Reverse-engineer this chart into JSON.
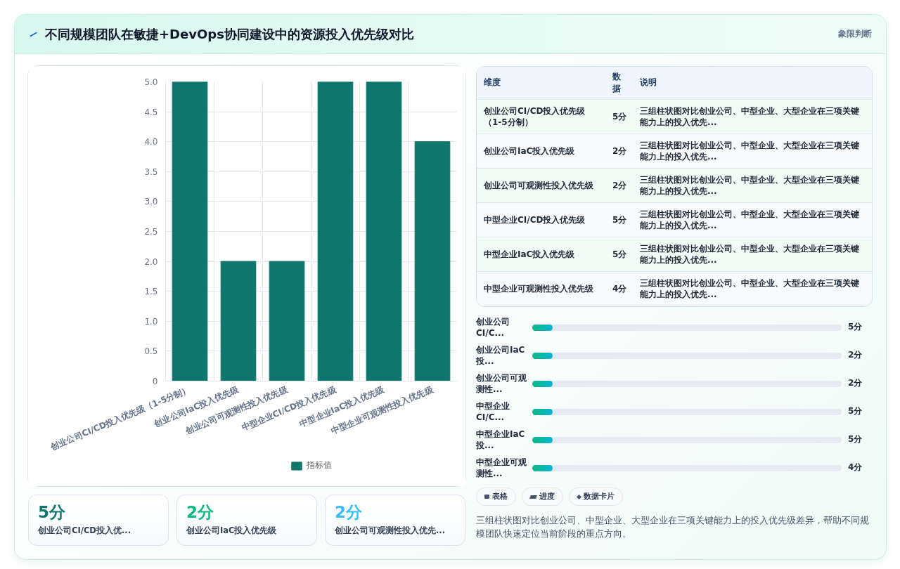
{
  "chart_data": [
    {
      "type": "bar",
      "title": "不同规模团队在敏捷+DevOps协同建设中的资源投入优先级对比",
      "annotations": [
        "象限判断"
      ],
      "categories": [
        "创业公司CI/CD投入优先级（1-5分制）",
        "创业公司IaC投入优先级",
        "创业公司可观测性投入优先级",
        "中型企业CI/CD投入优先级",
        "中型企业IaC投入优先级",
        "中型企业可观测性投入优先级"
      ],
      "series": [
        {
          "name": "指标值",
          "color": "#0f766e",
          "values": [
            5,
            2,
            2,
            5,
            5,
            4
          ]
        }
      ],
      "ylim": [
        0,
        5
      ],
      "yticks": [
        0,
        0.5,
        {
          "value": 1,
          "label": "1.0"
        },
        1.5,
        {
          "value": 2,
          "label": "2.0"
        },
        2.5,
        {
          "value": 3,
          "label": "3.0"
        },
        3.5,
        {
          "value": 4,
          "label": "4.0"
        },
        4.5,
        {
          "value": 5,
          "label": "5.0"
        }
      ],
      "grid": true,
      "legend": "bottom"
    },
    {
      "type": "other",
      "annotations": [
        "维度",
        "数据",
        "说明",
        "创业公司CI/CD投入优先级（1-5分制）",
        "5分",
        "三组柱状图对比创业公司、中型企业、大型企业在三项关键能力上的投入优先...",
        "创业公司IaC投入优先级",
        "2分",
        "三组柱状图对比创业公司、中型企业、大型企业在三项关键能力上的投入优先...",
        "创业公司可观测性投入优先级",
        "2分",
        "三组柱状图对比创业公司、中型企业、大型企业在三项关键能力上的投入优先...",
        "中型企业CI/CD投入优先级",
        "5分",
        "三组柱状图对比创业公司、中型企业、大型企业在三项关键能力上的投入优先...",
        "中型企业IaC投入优先级",
        "5分",
        "三组柱状图对比创业公司、中型企业、大型企业在三项关键能力上的投入优先...",
        "中型企业可观测性投入优先级",
        "4分",
        "三组柱状图对比创业公司、中型企业、大型企业在三项关键能力上的投入优先..."
      ]
    },
    {
      "type": "other",
      "annotations": [
        "创业公司CI/C...",
        "5分",
        "创业公司IaC投...",
        "2分",
        "创业公司可观测性...",
        "2分",
        "中型企业CI/C...",
        "5分",
        "中型企业IaC投...",
        "5分",
        "中型企业可观测性...",
        "4分"
      ]
    },
    {
      "type": "other",
      "colors": [
        "#0f766e",
        "#10b981",
        "#38bdf8"
      ],
      "annotations": [
        "5分",
        "创业公司CI/CD投入优...",
        "2分",
        "创业公司IaC投入优先级",
        "2分",
        "创业公司可观测性投入优先..."
      ]
    },
    {
      "type": "other",
      "annotations": [
        "表格",
        "进度",
        "数据卡片",
        "三组柱状图对比创业公司、中型企业、大型企业在三项关键能力上的投入优先级差异，帮助不同规模团队快速定位当前阶段的重点方向。"
      ]
    }
  ]
}
